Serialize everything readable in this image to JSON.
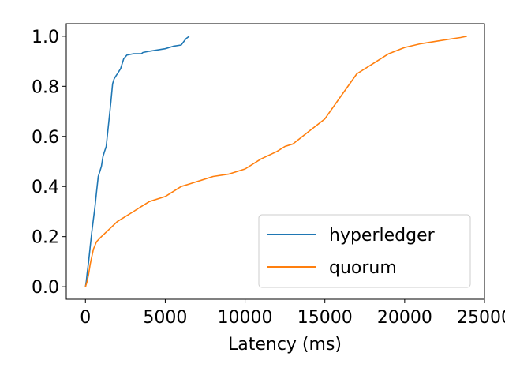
{
  "chart_data": {
    "type": "line",
    "title": "",
    "xlabel": "Latency (ms)",
    "ylabel": "",
    "xlim": [
      -1200,
      25000
    ],
    "ylim": [
      -0.05,
      1.05
    ],
    "xticks": [
      0,
      5000,
      10000,
      15000,
      20000,
      25000
    ],
    "xtick_labels": [
      "0",
      "5000",
      "10000",
      "15000",
      "20000",
      "25000"
    ],
    "yticks": [
      0.0,
      0.2,
      0.4,
      0.6,
      0.8,
      1.0
    ],
    "ytick_labels": [
      "0.0",
      "0.2",
      "0.4",
      "0.6",
      "0.8",
      "1.0"
    ],
    "grid": false,
    "legend_position": "lower-right",
    "series": [
      {
        "name": "hyperledger",
        "color": "#1f77b4",
        "x": [
          0,
          50,
          100,
          200,
          300,
          400,
          500,
          600,
          700,
          800,
          900,
          1000,
          1100,
          1200,
          1300,
          1400,
          1500,
          1600,
          1700,
          1800,
          1900,
          2000,
          2200,
          2400,
          2600,
          3000,
          3500,
          3600,
          4000,
          4500,
          5000,
          5500,
          6000,
          6300,
          6500
        ],
        "y": [
          0.0,
          0.02,
          0.05,
          0.1,
          0.16,
          0.22,
          0.27,
          0.32,
          0.38,
          0.44,
          0.46,
          0.48,
          0.52,
          0.54,
          0.56,
          0.62,
          0.68,
          0.74,
          0.81,
          0.83,
          0.84,
          0.85,
          0.87,
          0.91,
          0.925,
          0.93,
          0.93,
          0.935,
          0.94,
          0.945,
          0.95,
          0.96,
          0.965,
          0.99,
          1.0
        ]
      },
      {
        "name": "quorum",
        "color": "#ff7f0e",
        "x": [
          0,
          100,
          200,
          300,
          500,
          700,
          1000,
          1500,
          2000,
          2500,
          3000,
          3500,
          4000,
          5000,
          5500,
          6000,
          6500,
          7000,
          8000,
          9000,
          10000,
          11000,
          12000,
          12500,
          13000,
          14000,
          15000,
          16000,
          17000,
          18000,
          19000,
          20000,
          21000,
          22000,
          23000,
          23500,
          23900
        ],
        "y": [
          0.0,
          0.02,
          0.05,
          0.09,
          0.15,
          0.18,
          0.2,
          0.23,
          0.26,
          0.28,
          0.3,
          0.32,
          0.34,
          0.36,
          0.38,
          0.4,
          0.41,
          0.42,
          0.44,
          0.45,
          0.47,
          0.51,
          0.54,
          0.56,
          0.57,
          0.62,
          0.67,
          0.76,
          0.85,
          0.89,
          0.93,
          0.955,
          0.97,
          0.98,
          0.99,
          0.995,
          1.0
        ]
      }
    ]
  }
}
